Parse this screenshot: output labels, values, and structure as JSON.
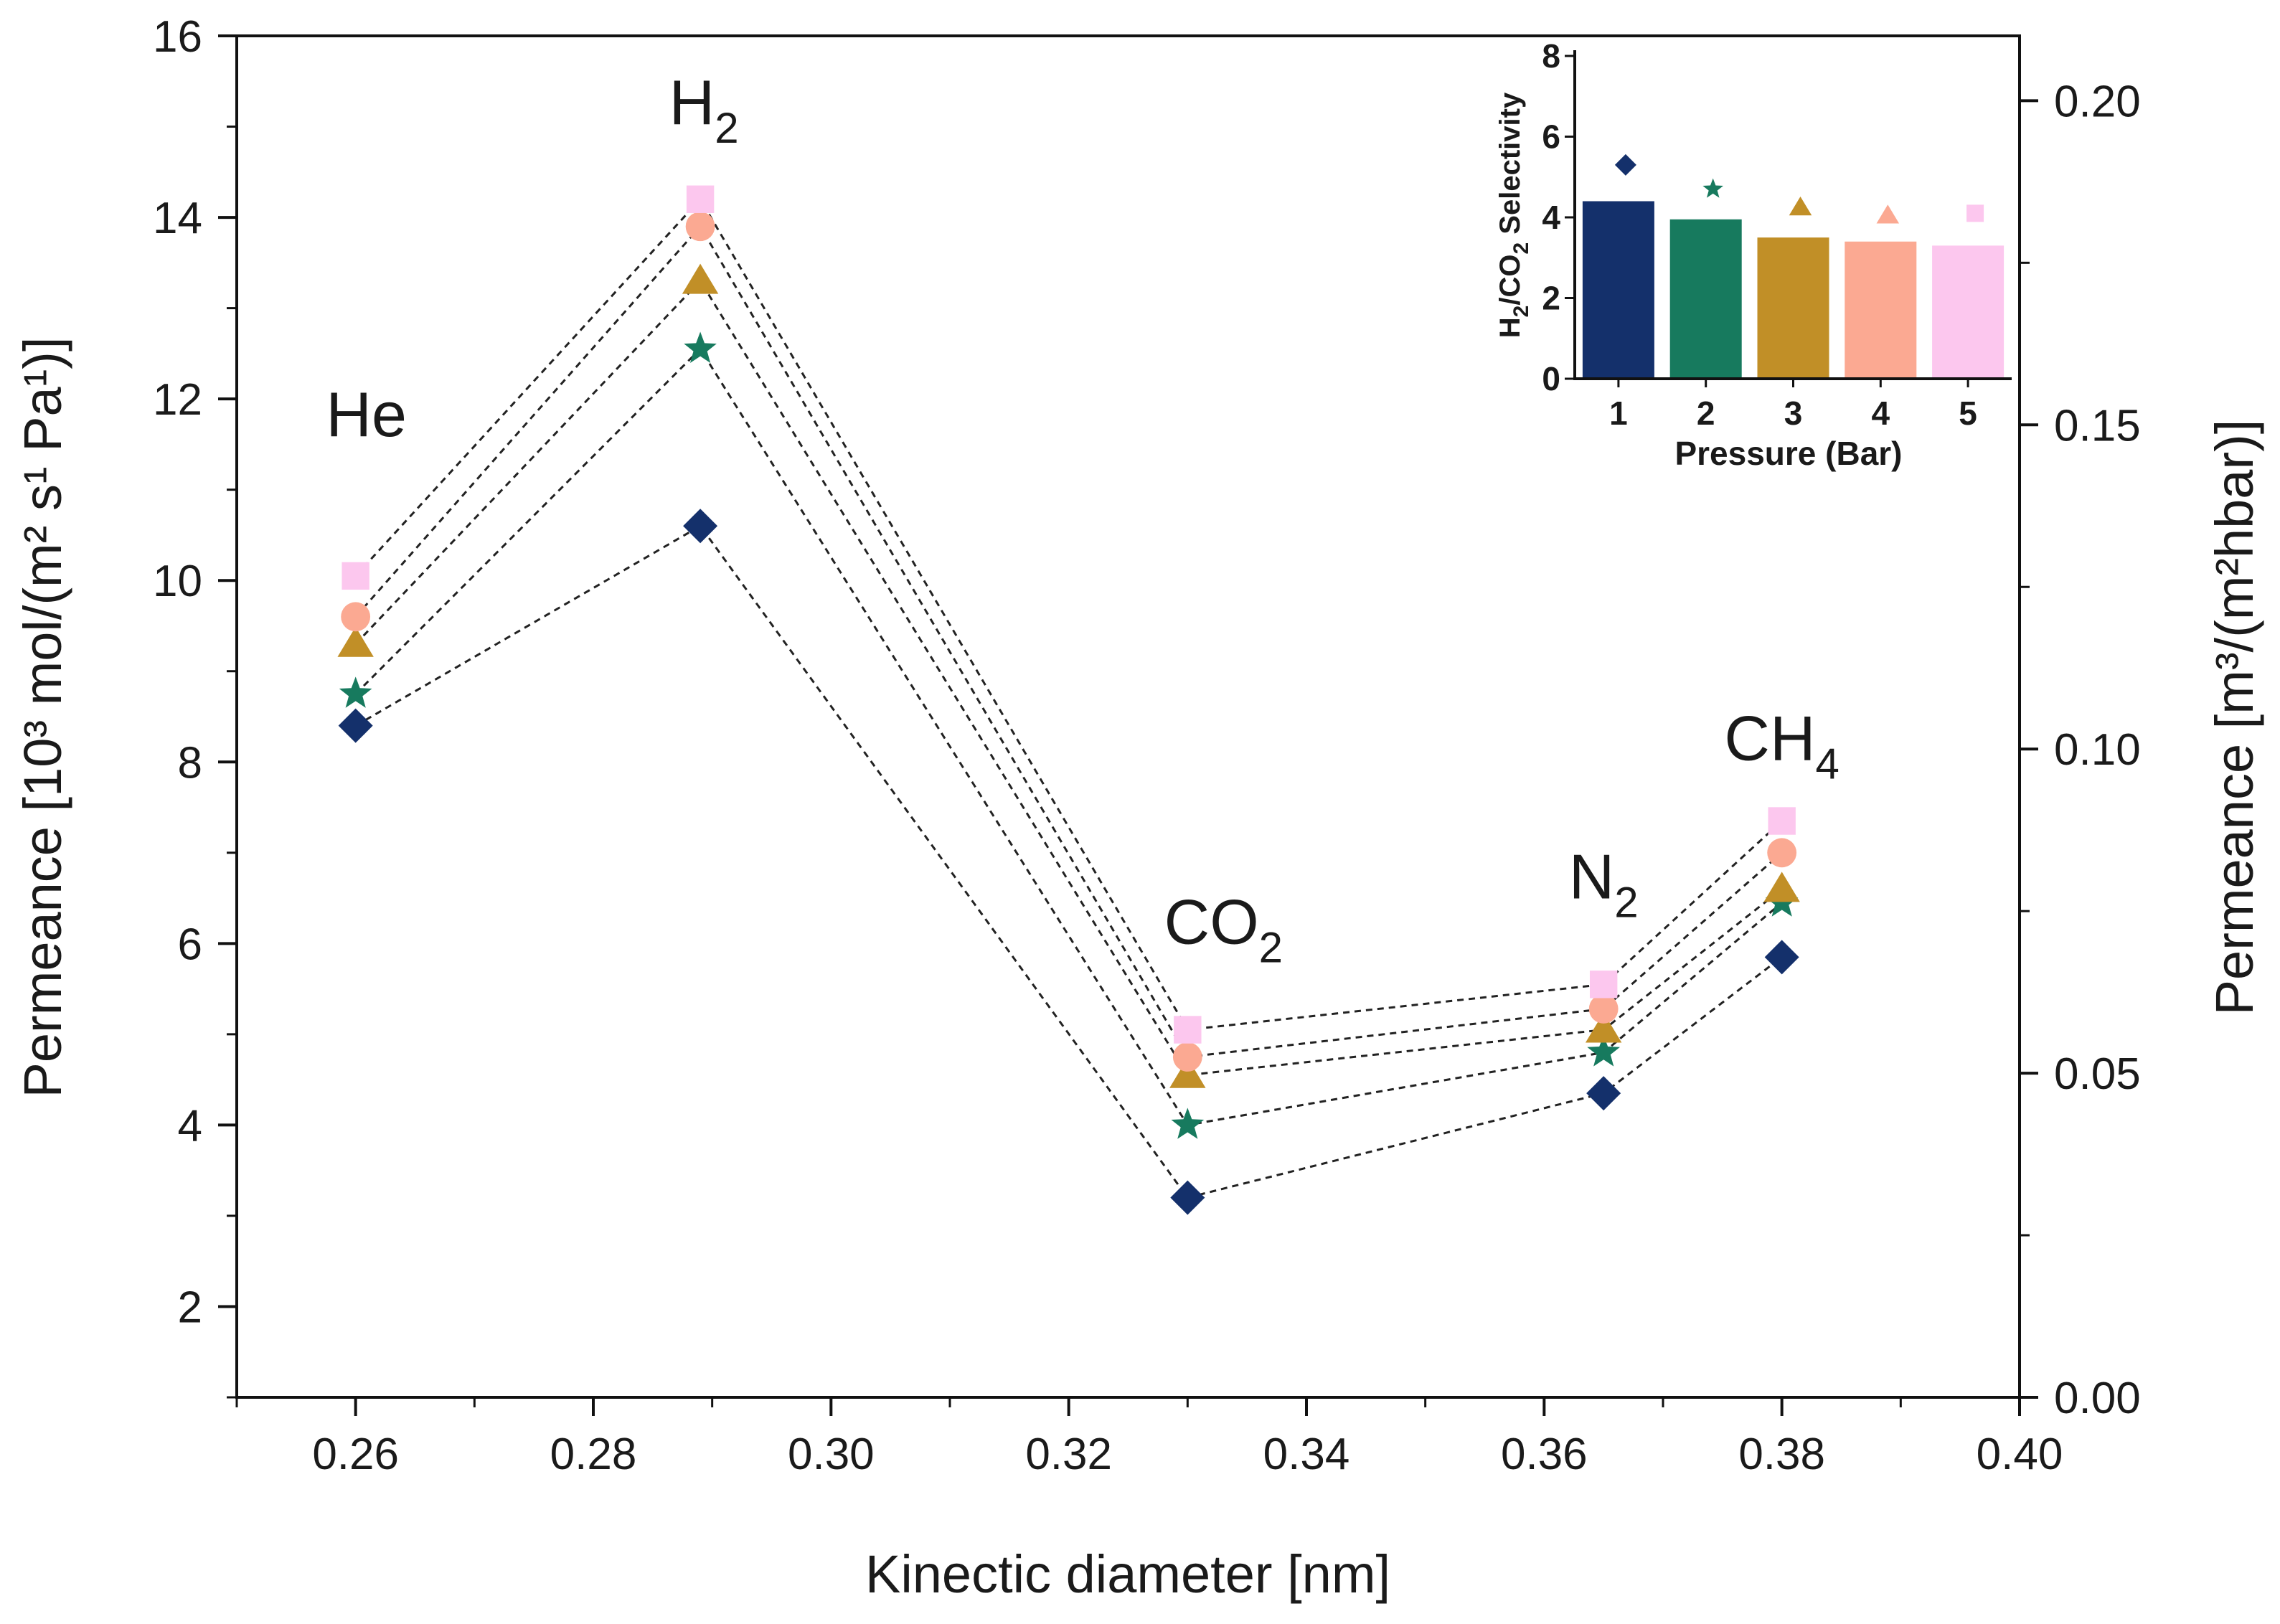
{
  "chart_data": [
    {
      "type": "scatter",
      "xlabel": "Kinectic diameter [nm]",
      "ylabel": "Permeance [10³ mol/(m² s¹ Pa¹)]",
      "ylabel_right": "Permeance [m³/(m²hbar)]",
      "xlim": [
        0.25,
        0.4
      ],
      "ylim": [
        1,
        16
      ],
      "ylim_right": [
        0.0,
        0.21
      ],
      "x_ticks": [
        "0.26",
        "0.28",
        "0.30",
        "0.32",
        "0.34",
        "0.36",
        "0.38",
        "0.40"
      ],
      "y_ticks": [
        "2",
        "4",
        "6",
        "8",
        "10",
        "12",
        "14",
        "16"
      ],
      "y_right_ticks": [
        "0.00",
        "0.05",
        "0.10",
        "0.15",
        "0.20"
      ],
      "grid": false,
      "x": [
        0.26,
        0.289,
        0.33,
        0.365,
        0.38
      ],
      "annotations": [
        {
          "main": "He",
          "sub": ""
        },
        {
          "main": "H",
          "sub": "2"
        },
        {
          "main": "CO",
          "sub": "2"
        },
        {
          "main": "N",
          "sub": "2"
        },
        {
          "main": "CH",
          "sub": "4"
        }
      ],
      "series": [
        {
          "marker": "diamond",
          "color": "#14306b",
          "values": [
            8.4,
            10.6,
            3.2,
            4.35,
            5.85
          ]
        },
        {
          "marker": "star",
          "color": "#177a5e",
          "values": [
            8.75,
            12.55,
            4.0,
            4.8,
            6.45
          ]
        },
        {
          "marker": "triangle",
          "color": "#c18f27",
          "values": [
            9.3,
            13.3,
            4.55,
            5.05,
            6.6
          ]
        },
        {
          "marker": "circle",
          "color": "#fba992",
          "values": [
            9.6,
            13.9,
            4.75,
            5.28,
            7.0
          ]
        },
        {
          "marker": "square",
          "color": "#fcc7ee",
          "values": [
            10.05,
            14.2,
            5.05,
            5.55,
            7.35
          ]
        }
      ]
    },
    {
      "type": "bar",
      "xlabel": "Pressure (Bar)",
      "ylabel": {
        "pre": "H",
        "s1": "2",
        "mid": "/CO",
        "s2": "2",
        "post": " Selectivity"
      },
      "categories": [
        "1",
        "2",
        "3",
        "4",
        "5"
      ],
      "values": [
        4.4,
        3.95,
        3.5,
        3.4,
        3.3
      ],
      "marker_values": [
        5.3,
        4.7,
        4.25,
        4.05,
        4.1
      ],
      "colors": [
        "#14306b",
        "#177a5e",
        "#c18f27",
        "#fba992",
        "#fcc7ee"
      ],
      "markers": [
        "diamond",
        "star",
        "triangle",
        "triangle",
        "square"
      ],
      "ylim": [
        0,
        8
      ],
      "y_ticks": [
        "0",
        "2",
        "4",
        "6",
        "8"
      ]
    }
  ]
}
